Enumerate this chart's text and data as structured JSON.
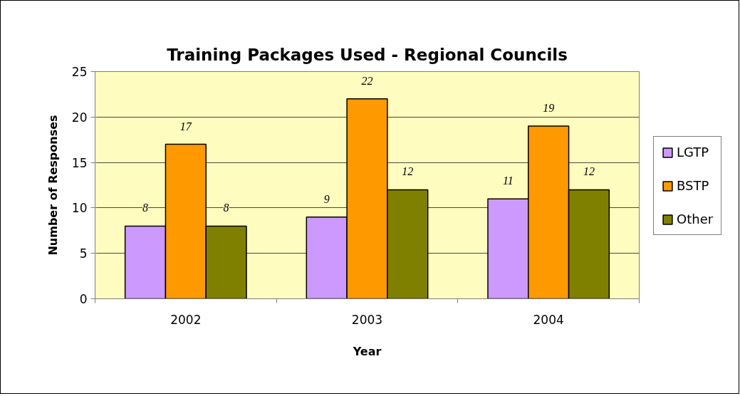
{
  "chart_data": {
    "type": "bar",
    "title": "Training Packages Used - Regional Councils",
    "xlabel": "Year",
    "ylabel": "Number of Responses",
    "categories": [
      "2002",
      "2003",
      "2004"
    ],
    "series": [
      {
        "name": "LGTP",
        "color": "#cc99ff",
        "values": [
          8,
          9,
          11
        ]
      },
      {
        "name": "BSTP",
        "color": "#ff9900",
        "values": [
          17,
          22,
          19
        ]
      },
      {
        "name": "Other",
        "color": "#808000",
        "values": [
          8,
          12,
          12
        ]
      }
    ],
    "ylim": [
      0,
      25
    ],
    "yticks": [
      0,
      5,
      10,
      15,
      20,
      25
    ],
    "grid": "y",
    "legend": "right",
    "data_labels": true
  }
}
